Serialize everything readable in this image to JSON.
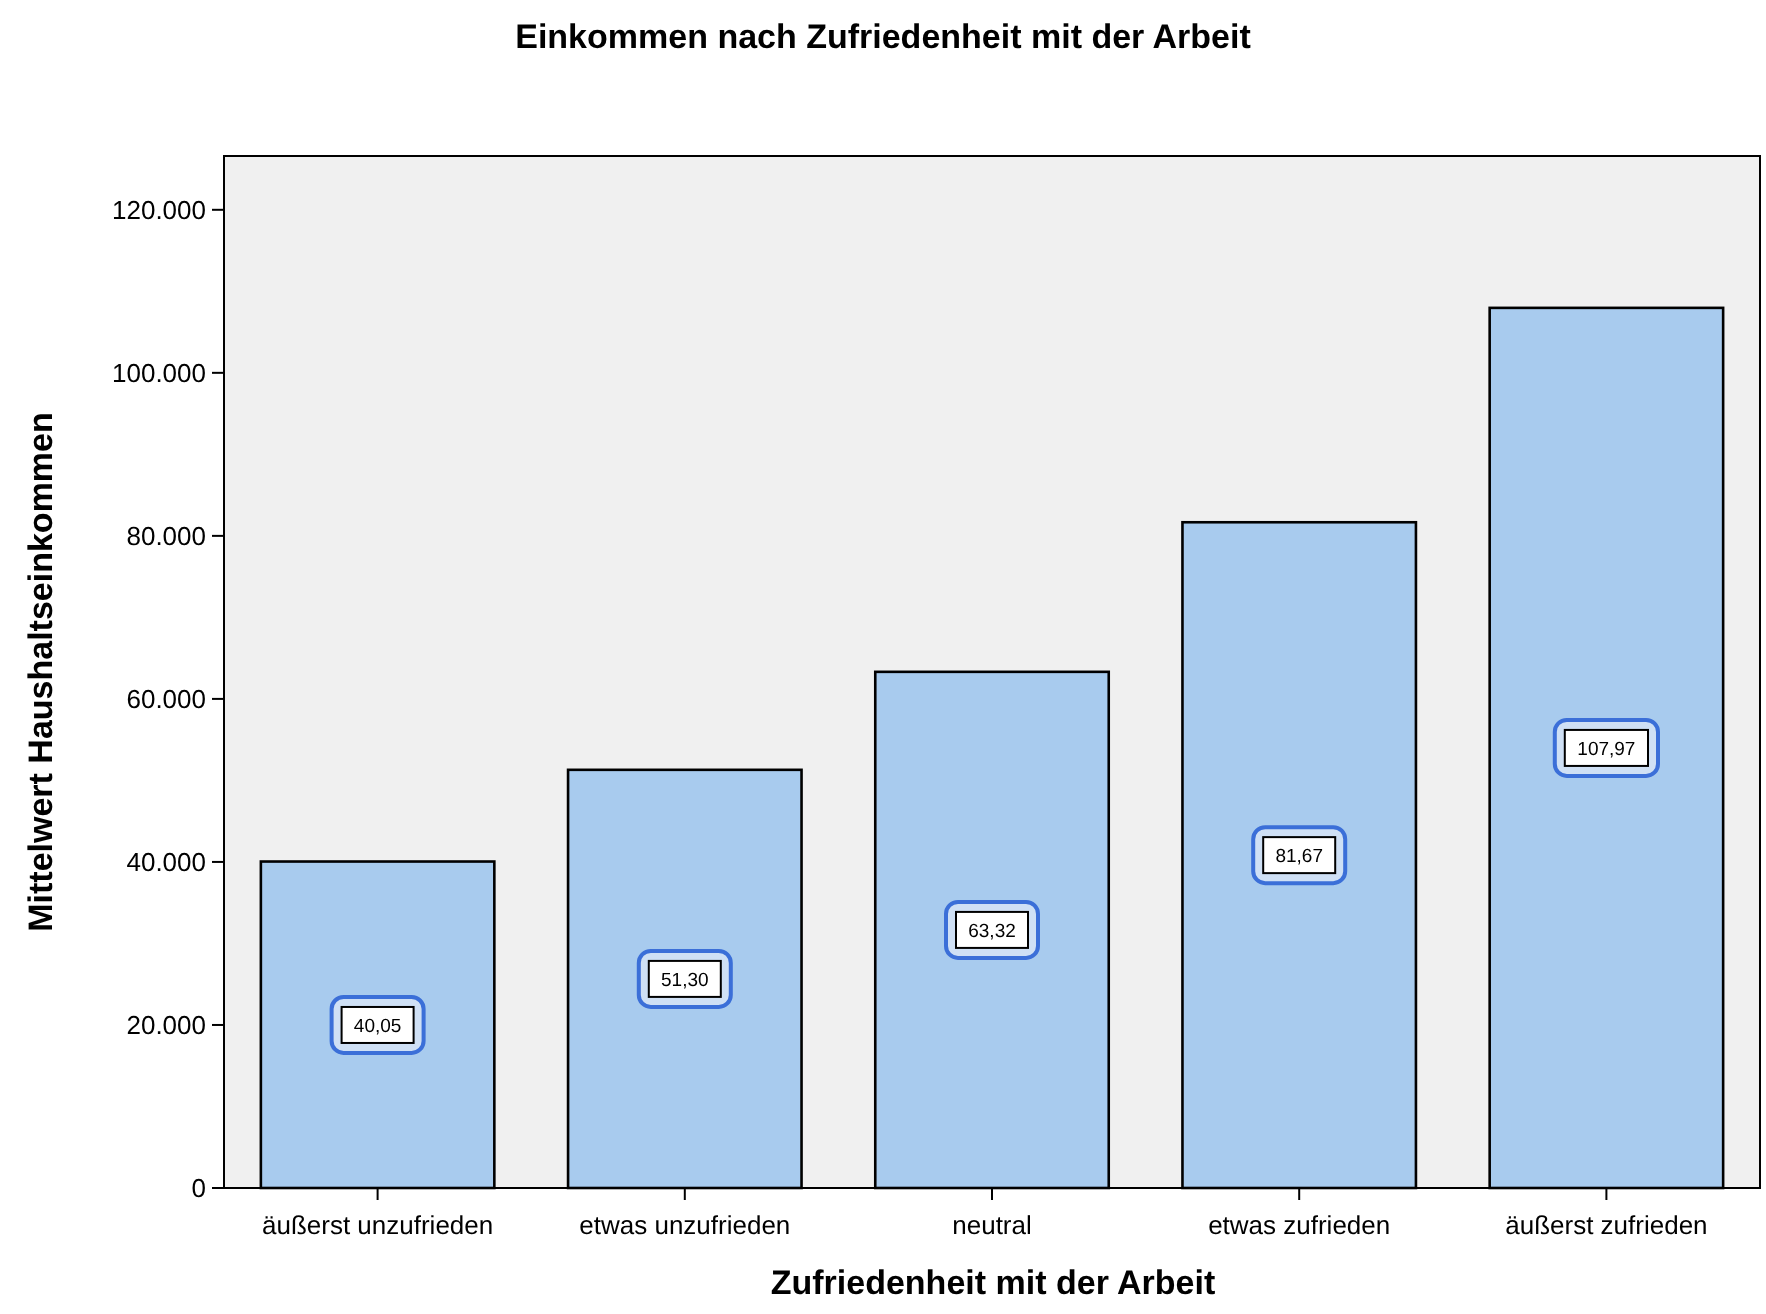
{
  "chart_data": {
    "type": "bar",
    "title": "Einkommen nach Zufriedenheit mit der Arbeit",
    "xlabel": "Zufriedenheit mit der Arbeit",
    "ylabel": "Mittelwert Haushaltseinkommen",
    "categories": [
      "äußerst unzufrieden",
      "etwas unzufrieden",
      "neutral",
      "etwas zufrieden",
      "äußerst zufrieden"
    ],
    "values": [
      40050,
      51300,
      63320,
      81670,
      107970
    ],
    "annotations": [
      {
        "text": "40,05",
        "x": "äußerst unzufrieden",
        "y": 20000
      },
      {
        "text": "51,30",
        "x": "etwas unzufrieden",
        "y": 25650
      },
      {
        "text": "63,32",
        "x": "neutral",
        "y": 31660
      },
      {
        "text": "81,67",
        "x": "etwas zufrieden",
        "y": 40835
      },
      {
        "text": "107,97",
        "x": "äußerst zufrieden",
        "y": 53985
      }
    ],
    "color": "#a8cbee",
    "ylim": [
      0,
      126600
    ],
    "yticks": [
      0,
      {
        "value": 20000,
        "label": "20.000"
      },
      {
        "value": 40000,
        "label": "40.000"
      },
      {
        "value": 60000,
        "label": "60.000"
      },
      {
        "value": 80000,
        "label": "80.000"
      },
      {
        "value": 100000,
        "label": "100.000"
      },
      {
        "value": 120000,
        "label": "120.000"
      }
    ],
    "grid": false
  }
}
